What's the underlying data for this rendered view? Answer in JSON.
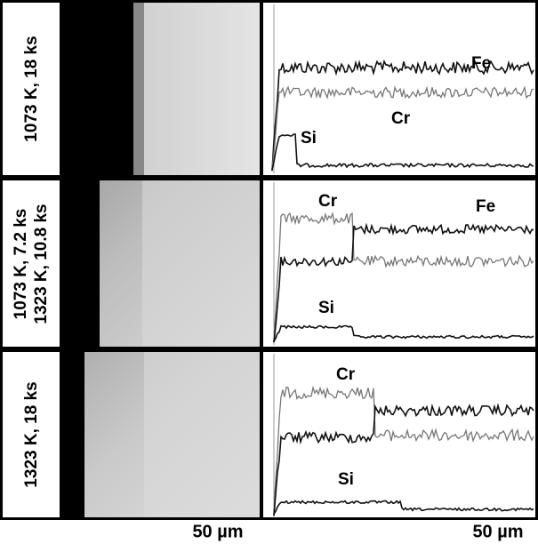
{
  "rows": [
    {
      "label_lines": [
        "1073 K, 18 ks"
      ],
      "elements": [
        "Fe",
        "Cr",
        "Si"
      ]
    },
    {
      "label_lines": [
        "1073 K, 7.2 ks",
        "1323 K, 10.8 ks"
      ],
      "elements": [
        "Cr",
        "Fe",
        "Si"
      ]
    },
    {
      "label_lines": [
        "1323 K, 18 ks"
      ],
      "elements": [
        "Cr",
        "Si"
      ]
    }
  ],
  "scale_bars": [
    "50 µm",
    "50 µm"
  ]
}
